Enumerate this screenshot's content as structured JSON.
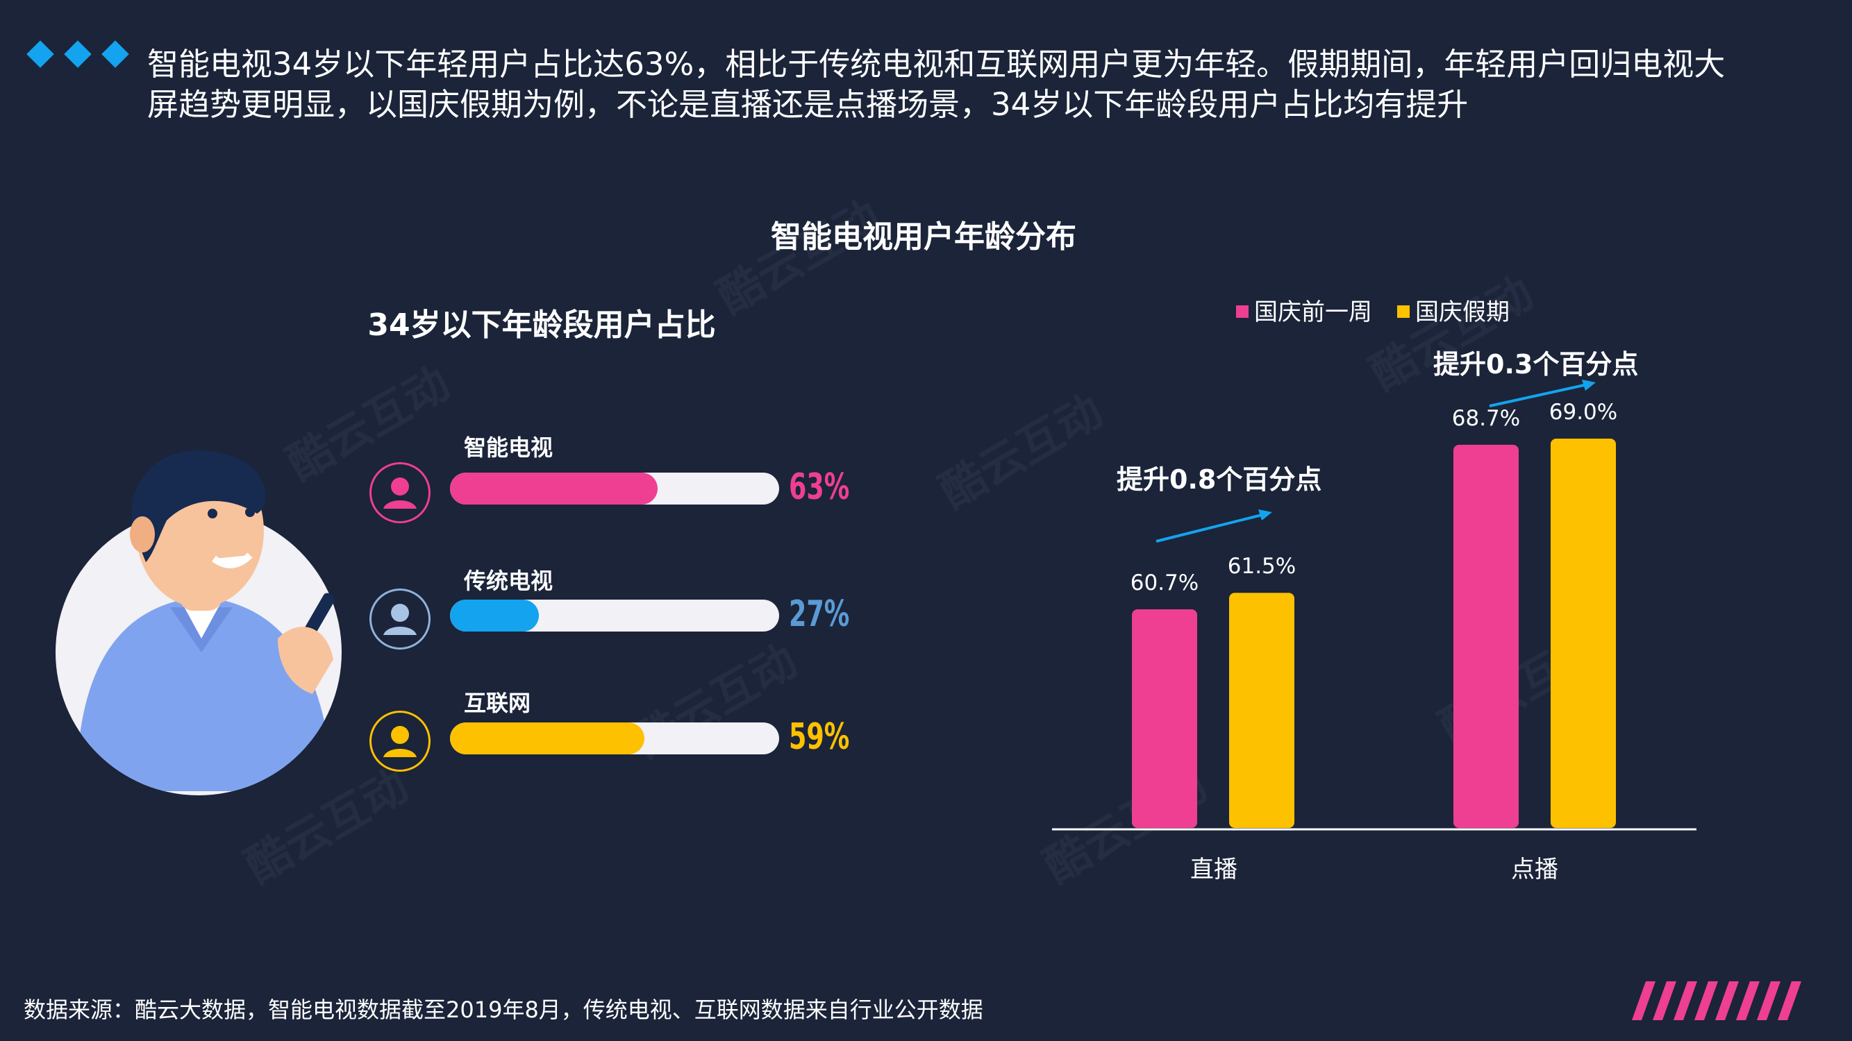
{
  "headline": "智能电视34岁以下年轻用户占比达63%，相比于传统电视和互联网用户更为年轻。假期期间，年轻用户回归电视大屏趋势更明显，以国庆假期为例，不论是直播还是点播场景，34岁以下年龄段用户占比均有提升",
  "watermark": "酷云互动",
  "colors": {
    "pink": "#ee3f92",
    "yellow": "#fec100",
    "blue": "#14a3ee",
    "bg": "#1b2439",
    "track": "#f1f1f6",
    "pct_blue": "#5b9bd5"
  },
  "left_panel": {
    "title": "34岁以下年龄段用户占比",
    "bars": [
      {
        "label": "智能电视",
        "value": 63,
        "value_text": "63%",
        "color": "#ee3f92",
        "icon": "user-icon"
      },
      {
        "label": "传统电视",
        "value": 27,
        "value_text": "27%",
        "color": "#14a3ee",
        "icon": "user-icon"
      },
      {
        "label": "互联网",
        "value": 59,
        "value_text": "59%",
        "color": "#fec100",
        "icon": "user-icon"
      }
    ]
  },
  "chart_data": {
    "type": "bar",
    "title": "智能电视用户年龄分布",
    "categories": [
      "直播",
      "点播"
    ],
    "series": [
      {
        "name": "国庆前一周",
        "color": "#ee3f92",
        "values": [
          60.7,
          68.7
        ],
        "labels": [
          "60.7%",
          "68.7%"
        ]
      },
      {
        "name": "国庆假期",
        "color": "#fec100",
        "values": [
          61.5,
          69.0
        ],
        "labels": [
          "61.5%",
          "69.0%"
        ]
      }
    ],
    "ylim": [
      0,
      75
    ],
    "legend": "top",
    "grid": false,
    "annotations": [
      "提升0.8个百分点",
      "提升0.3个百分点"
    ]
  },
  "footer": "数据来源：酷云大数据，智能电视数据截至2019年8月，传统电视、互联网数据来自行业公开数据"
}
